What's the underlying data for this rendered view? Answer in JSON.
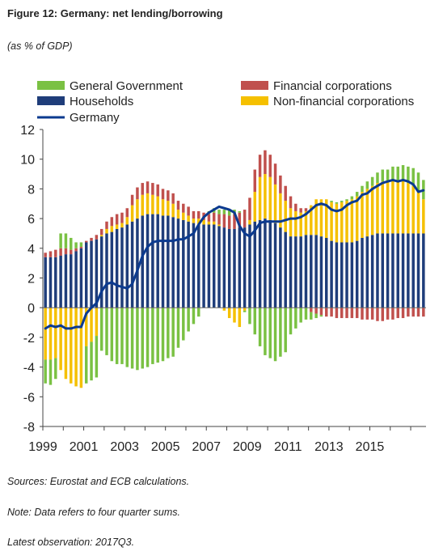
{
  "header": {
    "title": "Figure 12: Germany: net lending/borrowing",
    "subtitle": "(as % of GDP)"
  },
  "notes": {
    "sources": "Sources: Eurostat and ECB calculations.",
    "note": "Note: Data refers to four quarter sums.",
    "latest": "Latest observation: 2017Q3."
  },
  "chart_data": {
    "type": "bar",
    "stacked": true,
    "ylim": [
      -8,
      12
    ],
    "yticks": [
      -8,
      -6,
      -4,
      -2,
      0,
      2,
      4,
      6,
      8,
      10,
      12
    ],
    "xtick_labels": [
      "1999",
      "2001",
      "2003",
      "2005",
      "2007",
      "2009",
      "2011",
      "2013",
      "2015"
    ],
    "categories": [
      "1999Q1",
      "1999Q2",
      "1999Q3",
      "1999Q4",
      "2000Q1",
      "2000Q2",
      "2000Q3",
      "2000Q4",
      "2001Q1",
      "2001Q2",
      "2001Q3",
      "2001Q4",
      "2002Q1",
      "2002Q2",
      "2002Q3",
      "2002Q4",
      "2003Q1",
      "2003Q2",
      "2003Q3",
      "2003Q4",
      "2004Q1",
      "2004Q2",
      "2004Q3",
      "2004Q4",
      "2005Q1",
      "2005Q2",
      "2005Q3",
      "2005Q4",
      "2006Q1",
      "2006Q2",
      "2006Q3",
      "2006Q4",
      "2007Q1",
      "2007Q2",
      "2007Q3",
      "2007Q4",
      "2008Q1",
      "2008Q2",
      "2008Q3",
      "2008Q4",
      "2009Q1",
      "2009Q2",
      "2009Q3",
      "2009Q4",
      "2010Q1",
      "2010Q2",
      "2010Q3",
      "2010Q4",
      "2011Q1",
      "2011Q2",
      "2011Q3",
      "2011Q4",
      "2012Q1",
      "2012Q2",
      "2012Q3",
      "2012Q4",
      "2013Q1",
      "2013Q2",
      "2013Q3",
      "2013Q4",
      "2014Q1",
      "2014Q2",
      "2014Q3",
      "2014Q4",
      "2015Q1",
      "2015Q2",
      "2015Q3",
      "2015Q4",
      "2016Q1",
      "2016Q2",
      "2016Q3",
      "2016Q4",
      "2017Q1",
      "2017Q2",
      "2017Q3"
    ],
    "legend_position": "top",
    "legend": [
      {
        "key": "gg",
        "label": "General Government",
        "color": "#7ac143",
        "kind": "bar"
      },
      {
        "key": "fc",
        "label": "Financial corporations",
        "color": "#c0504d",
        "kind": "bar"
      },
      {
        "key": "hh",
        "label": "Households",
        "color": "#1f3d7a",
        "kind": "bar"
      },
      {
        "key": "nfc",
        "label": "Non-financial corporations",
        "color": "#f5c000",
        "kind": "bar"
      },
      {
        "key": "germany",
        "label": "Germany",
        "color": "#0b3a8f",
        "kind": "line"
      }
    ],
    "series": [
      {
        "name": "General Government",
        "key": "gg",
        "color": "#7ac143",
        "values": [
          -1.6,
          -1.7,
          -1.4,
          1.0,
          1.0,
          0.8,
          0.4,
          0.3,
          -2.5,
          -2.6,
          -2.8,
          -2.9,
          -3.2,
          -3.6,
          -3.8,
          -3.8,
          -4.0,
          -4.1,
          -4.2,
          -4.1,
          -4.0,
          -3.8,
          -3.7,
          -3.6,
          -3.4,
          -3.3,
          -2.7,
          -2.2,
          -1.6,
          -1.1,
          -0.6,
          0.0,
          0.2,
          0.3,
          0.3,
          0.3,
          0.4,
          0.3,
          0.1,
          -0.1,
          -1.1,
          -1.8,
          -2.6,
          -3.2,
          -3.4,
          -3.6,
          -3.3,
          -3.0,
          -1.8,
          -1.4,
          -1.0,
          -0.8,
          -0.5,
          -0.3,
          -0.1,
          0.0,
          0.1,
          0.1,
          0.1,
          0.1,
          0.2,
          0.3,
          0.4,
          0.5,
          0.6,
          0.7,
          0.8,
          0.8,
          0.9,
          0.9,
          1.0,
          1.1,
          1.2,
          1.3,
          1.3
        ]
      },
      {
        "name": "Financial corporations",
        "key": "fc",
        "color": "#c0504d",
        "values": [
          0.3,
          0.4,
          0.5,
          0.5,
          0.4,
          0.3,
          0.2,
          0.1,
          0.1,
          0.2,
          0.3,
          0.4,
          0.5,
          0.6,
          0.7,
          0.7,
          0.6,
          0.7,
          0.8,
          0.8,
          0.8,
          0.8,
          0.8,
          0.7,
          0.7,
          0.7,
          0.6,
          0.6,
          0.6,
          0.5,
          0.5,
          0.5,
          0.5,
          0.6,
          0.7,
          0.9,
          0.9,
          1.0,
          1.0,
          1.2,
          1.5,
          1.5,
          1.5,
          1.6,
          1.5,
          1.4,
          1.2,
          1.0,
          0.8,
          0.5,
          0.3,
          0.2,
          -0.3,
          -0.4,
          -0.5,
          -0.6,
          -0.6,
          -0.7,
          -0.7,
          -0.7,
          -0.7,
          -0.7,
          -0.8,
          -0.8,
          -0.8,
          -0.9,
          -0.9,
          -0.8,
          -0.8,
          -0.7,
          -0.7,
          -0.6,
          -0.6,
          -0.6,
          -0.6
        ]
      },
      {
        "name": "Households",
        "key": "hh",
        "color": "#1f3d7a",
        "values": [
          3.4,
          3.4,
          3.4,
          3.5,
          3.6,
          3.6,
          3.8,
          4.0,
          4.4,
          4.5,
          4.6,
          4.8,
          5.0,
          5.1,
          5.3,
          5.4,
          5.6,
          5.8,
          6.0,
          6.2,
          6.3,
          6.3,
          6.3,
          6.2,
          6.2,
          6.1,
          6.0,
          5.9,
          5.8,
          5.7,
          5.6,
          5.6,
          5.6,
          5.6,
          5.5,
          5.4,
          5.3,
          5.3,
          5.4,
          5.4,
          5.6,
          5.8,
          5.9,
          6.0,
          5.9,
          5.7,
          5.4,
          5.1,
          4.8,
          4.8,
          4.8,
          4.9,
          4.9,
          4.9,
          4.8,
          4.7,
          4.5,
          4.4,
          4.4,
          4.4,
          4.4,
          4.5,
          4.7,
          4.8,
          4.9,
          5.0,
          5.0,
          5.0,
          5.0,
          5.0,
          5.0,
          5.0,
          5.0,
          5.0,
          5.0
        ]
      },
      {
        "name": "Non-financial corporations",
        "key": "nfc",
        "color": "#f5c000",
        "values": [
          -3.5,
          -3.5,
          -3.4,
          -4.2,
          -4.8,
          -5.1,
          -5.3,
          -5.4,
          -2.6,
          -2.3,
          -1.9,
          0.1,
          0.3,
          0.4,
          0.3,
          0.3,
          0.5,
          1.1,
          1.3,
          1.4,
          1.4,
          1.3,
          1.2,
          1.1,
          1.0,
          0.9,
          0.6,
          0.5,
          0.4,
          0.3,
          0.4,
          0.3,
          0.2,
          0.2,
          0.1,
          -0.2,
          -0.7,
          -1.0,
          -1.3,
          -0.2,
          0.3,
          2.0,
          2.9,
          3.0,
          2.9,
          2.6,
          2.3,
          2.1,
          1.9,
          1.7,
          1.6,
          1.6,
          2.0,
          2.4,
          2.5,
          2.6,
          2.6,
          2.6,
          2.7,
          2.8,
          2.9,
          3.0,
          3.1,
          3.2,
          3.3,
          3.4,
          3.5,
          3.5,
          3.6,
          3.6,
          3.6,
          3.4,
          3.2,
          2.8,
          2.3
        ]
      },
      {
        "name": "Germany",
        "key": "germany",
        "color": "#0b3a8f",
        "type": "line",
        "values": [
          -1.4,
          -1.2,
          -1.3,
          -1.2,
          -1.4,
          -1.4,
          -1.3,
          -1.3,
          -0.4,
          0.0,
          0.3,
          1.1,
          1.6,
          1.7,
          1.5,
          1.4,
          1.3,
          1.6,
          2.5,
          3.5,
          4.1,
          4.4,
          4.5,
          4.5,
          4.5,
          4.5,
          4.6,
          4.6,
          4.8,
          5.0,
          5.6,
          6.1,
          6.4,
          6.6,
          6.8,
          6.7,
          6.6,
          6.4,
          5.5,
          5.0,
          4.8,
          5.2,
          5.7,
          5.8,
          5.8,
          5.8,
          5.8,
          5.9,
          6.0,
          6.0,
          6.1,
          6.3,
          6.6,
          6.9,
          7.0,
          6.9,
          6.6,
          6.5,
          6.6,
          6.9,
          7.1,
          7.2,
          7.6,
          7.7,
          8.0,
          8.2,
          8.4,
          8.5,
          8.6,
          8.5,
          8.6,
          8.5,
          8.3,
          7.8,
          7.9
        ]
      }
    ]
  }
}
